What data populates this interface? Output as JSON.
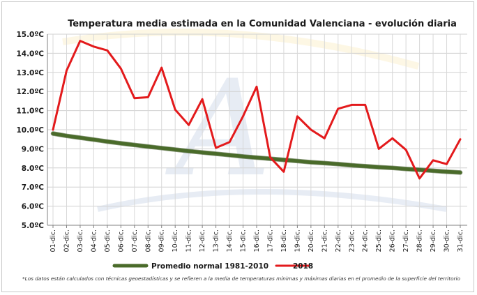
{
  "chart_data": {
    "type": "line",
    "title": "Temperatura media estimada  en la Comunidad Valenciana - evolución diaria",
    "categories": [
      "01-dic.",
      "02-dic.",
      "03-dic.",
      "04-dic.",
      "05-dic.",
      "06-dic.",
      "07-dic.",
      "08-dic.",
      "09-dic.",
      "10-dic.",
      "11-dic.",
      "12-dic.",
      "13-dic.",
      "14-dic.",
      "15-dic.",
      "16-dic.",
      "17-dic.",
      "18-dic.",
      "19-dic.",
      "20-dic.",
      "21-dic.",
      "22-dic.",
      "23-dic.",
      "24-dic.",
      "25-dic.",
      "26-dic.",
      "27-dic.",
      "28-dic.",
      "29-dic.",
      "30-dic.",
      "31-dic."
    ],
    "y_ticks": [
      "5.0ºC",
      "6.0ºC",
      "7.0ºC",
      "8.0ºC",
      "9.0ºC",
      "10.0ºC",
      "11.0ºC",
      "12.0ºC",
      "13.0ºC",
      "14.0ºC",
      "15.0ºC"
    ],
    "ylim": [
      5,
      15
    ],
    "grid": true,
    "legend_position": "bottom",
    "series": [
      {
        "name": "Promedio normal 1981-2010",
        "color": "#4a6b2a",
        "values": [
          9.8,
          9.68,
          9.58,
          9.48,
          9.38,
          9.29,
          9.2,
          9.12,
          9.04,
          8.96,
          8.88,
          8.81,
          8.74,
          8.67,
          8.6,
          8.54,
          8.48,
          8.42,
          8.36,
          8.3,
          8.25,
          8.2,
          8.14,
          8.09,
          8.04,
          8.0,
          7.95,
          7.9,
          7.85,
          7.8,
          7.76
        ]
      },
      {
        "name": "2018",
        "color": "#e31a1c",
        "values": [
          10.0,
          13.1,
          14.65,
          14.35,
          14.15,
          13.2,
          11.65,
          11.7,
          13.25,
          11.05,
          10.25,
          11.6,
          9.05,
          9.35,
          10.7,
          12.25,
          8.55,
          7.8,
          10.7,
          10.0,
          9.55,
          11.1,
          11.3,
          11.3,
          9.0,
          9.55,
          8.95,
          7.45,
          8.4,
          8.2,
          9.5
        ]
      }
    ],
    "footnote": "*Los datos están calculados con técnicas geoestadísticas y se refieren a la media de temperaturas mínimas y máximas diarias en el promedio de la superficie del territorio"
  }
}
